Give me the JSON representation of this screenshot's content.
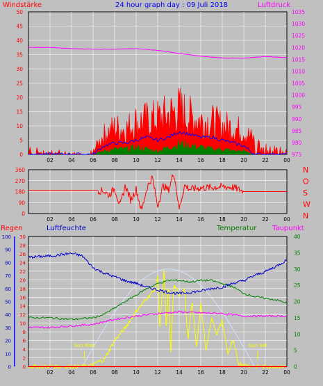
{
  "title": "24 hour graph day : 09 Juli 2018",
  "colors": {
    "bg": "#c0c0c0",
    "plot_bg": "#c0c0c0",
    "grid": "#ffffff",
    "wind": "#ff0000",
    "gust": "#008000",
    "avg_wind": "#0000ff",
    "pressure": "#ff00ff",
    "direction": "#ff0000",
    "humidity": "#0000cc",
    "temperature": "#008000",
    "dewpoint": "#ff00ff",
    "solar": "#ffff00",
    "rain": "#ff0000",
    "sun_label": "#ffff00"
  },
  "chart_data": [
    {
      "id": "wind_pressure",
      "type": "line",
      "y_left_label": "Windstärke",
      "y_right_label": "Luftdruck",
      "ylim_left": [
        0,
        50
      ],
      "ylim_right": [
        975,
        1035
      ],
      "y_left_ticks": [
        "0",
        "5",
        "10",
        "15",
        "20",
        "25",
        "30",
        "35",
        "40",
        "45",
        "50"
      ],
      "y_right_ticks": [
        "975",
        "980",
        "985",
        "990",
        "995",
        "1000",
        "1005",
        "1010",
        "1015",
        "1020",
        "1025",
        "1030",
        "1035"
      ],
      "x_ticks": [
        "02",
        "04",
        "06",
        "08",
        "10",
        "12",
        "14",
        "16",
        "18",
        "20",
        "22",
        "00"
      ],
      "grid": true,
      "series": [
        {
          "name": "Luftdruck",
          "axis": "right",
          "x": [
            0,
            2,
            4,
            6,
            8,
            10,
            12,
            14,
            16,
            18,
            20,
            22,
            24
          ],
          "values": [
            1020,
            1020,
            1019.5,
            1019.3,
            1019.3,
            1019.5,
            1018.8,
            1017.5,
            1016.3,
            1015.6,
            1015.5,
            1016.2,
            1015.7
          ]
        },
        {
          "name": "Windstärke",
          "axis": "left",
          "x": [
            0,
            2,
            4,
            6,
            7,
            8,
            9,
            10,
            11,
            12,
            13,
            14,
            15,
            16,
            17,
            18,
            19,
            20,
            21,
            22,
            23,
            24
          ],
          "values": [
            3,
            2,
            1,
            2,
            11,
            15,
            14,
            18,
            19,
            20,
            22,
            25,
            21,
            19,
            18,
            16,
            15,
            13,
            8,
            4,
            3,
            2
          ]
        },
        {
          "name": "Böen",
          "axis": "left",
          "x": [
            0,
            6,
            7,
            8,
            9,
            10,
            11,
            12,
            13,
            14,
            15,
            16,
            17,
            18,
            19,
            20,
            21,
            24
          ],
          "values": [
            0,
            0,
            2,
            3,
            3,
            4,
            3,
            2,
            4,
            6,
            5,
            4,
            3,
            3,
            2,
            2,
            0,
            0
          ]
        },
        {
          "name": "Mittelwind",
          "axis": "left",
          "x": [
            0,
            6,
            7,
            8,
            9,
            10,
            11,
            12,
            13,
            14,
            15,
            16,
            17,
            18,
            19,
            20,
            21,
            24
          ],
          "values": [
            0,
            0,
            3,
            4,
            4,
            5,
            6,
            5,
            6,
            8,
            7,
            6,
            6,
            5,
            4,
            3,
            0,
            0
          ]
        }
      ]
    },
    {
      "id": "wind_direction",
      "type": "line",
      "ylim": [
        0,
        360
      ],
      "y_left_ticks": [
        "0",
        "90",
        "180",
        "270",
        "360"
      ],
      "right_labels": [
        "N",
        "W",
        "S",
        "O",
        "N"
      ],
      "x_ticks": [
        "02",
        "04",
        "06",
        "08",
        "10",
        "12",
        "14",
        "16",
        "18",
        "20",
        "22",
        "00"
      ],
      "grid": true,
      "series": [
        {
          "name": "Windrichtung",
          "x": [
            0,
            6,
            7,
            7.5,
            8,
            8.5,
            9,
            9.5,
            10,
            10.5,
            11,
            11.5,
            12,
            12.5,
            13,
            13.5,
            14,
            14.5,
            15,
            16,
            17,
            18,
            19,
            20,
            21,
            24
          ],
          "values": [
            190,
            190,
            185,
            150,
            210,
            60,
            230,
            110,
            200,
            20,
            210,
            300,
            60,
            230,
            190,
            340,
            40,
            230,
            200,
            210,
            215,
            220,
            215,
            180,
            180,
            180
          ]
        }
      ]
    },
    {
      "id": "climate",
      "type": "line",
      "legend": [
        "Regen",
        "Luftfeuchte",
        "Temperatur",
        "Taupunkt"
      ],
      "ylim_rain": [
        0,
        100
      ],
      "ylim_hum": [
        0,
        30
      ],
      "ylim_temp": [
        0,
        40
      ],
      "rain_ticks": [
        "0",
        "10",
        "20",
        "30",
        "40",
        "50",
        "60",
        "70",
        "80",
        "90",
        "100"
      ],
      "hum_ticks": [
        "0",
        "2",
        "4",
        "6",
        "8",
        "10",
        "12",
        "14",
        "16",
        "18",
        "20",
        "22",
        "24",
        "26",
        "28",
        "30"
      ],
      "temp_ticks": [
        "0",
        "5",
        "10",
        "15",
        "20",
        "25",
        "30",
        "35",
        "40"
      ],
      "x_ticks": [
        "02",
        "04",
        "06",
        "08",
        "10",
        "12",
        "14",
        "16",
        "18",
        "20",
        "22",
        "00"
      ],
      "grid": true,
      "sun_rise": {
        "label": "Sun Rise",
        "x": 5.2
      },
      "sun_set": {
        "label": "Sun Set",
        "x": 21.3
      },
      "series": [
        {
          "name": "Luftfeuchte",
          "axis": "rain",
          "x": [
            0,
            2,
            4,
            5,
            6,
            7,
            8,
            9,
            10,
            11,
            12,
            13,
            14,
            15,
            16,
            17,
            18,
            19,
            20,
            21,
            22,
            23,
            24
          ],
          "values": [
            84,
            85,
            87,
            85,
            76,
            72,
            69,
            66,
            64,
            61,
            59,
            57,
            56,
            57,
            58,
            60,
            61,
            64,
            66,
            70,
            73,
            77,
            82
          ]
        },
        {
          "name": "Temperatur",
          "axis": "temp",
          "x": [
            0,
            2,
            4,
            6,
            7,
            8,
            9,
            10,
            11,
            12,
            13,
            14,
            15,
            16,
            17,
            18,
            19,
            20,
            21,
            22,
            23,
            24
          ],
          "values": [
            15,
            15,
            14.5,
            15,
            16,
            18,
            20,
            22,
            24,
            25.5,
            26.5,
            26.5,
            26,
            26.5,
            26.5,
            25.5,
            24.5,
            22.5,
            21.5,
            21,
            20.5,
            19.5
          ]
        },
        {
          "name": "Taupunkt",
          "axis": "temp",
          "x": [
            0,
            2,
            4,
            6,
            8,
            10,
            12,
            14,
            16,
            18,
            20,
            22,
            24
          ],
          "values": [
            12,
            12,
            12.5,
            13,
            14.5,
            15.5,
            16.3,
            16.8,
            16.5,
            16.3,
            15.5,
            15.5,
            15.5
          ]
        },
        {
          "name": "Solar",
          "axis": "temp",
          "x": [
            0,
            5,
            6,
            6.5,
            7,
            7.5,
            8,
            9,
            10,
            11,
            11.8,
            12,
            12.2,
            12.6,
            12.8,
            13,
            13.2,
            13.5,
            14,
            14.5,
            14.8,
            15.2,
            15.6,
            16,
            16.5,
            17,
            17.5,
            18,
            18.5,
            19,
            19.5,
            20,
            21,
            24
          ],
          "values": [
            0,
            0,
            0.5,
            1.5,
            2,
            5,
            8,
            12,
            17,
            21,
            24,
            28,
            12,
            30,
            10,
            27,
            3,
            25,
            22,
            24,
            8,
            20,
            6,
            19,
            5,
            15,
            10,
            14,
            4,
            8,
            1,
            0.5,
            0,
            0
          ]
        },
        {
          "name": "Regen",
          "axis": "rain",
          "x": [
            0,
            24
          ],
          "values": [
            0,
            0
          ]
        }
      ]
    }
  ]
}
